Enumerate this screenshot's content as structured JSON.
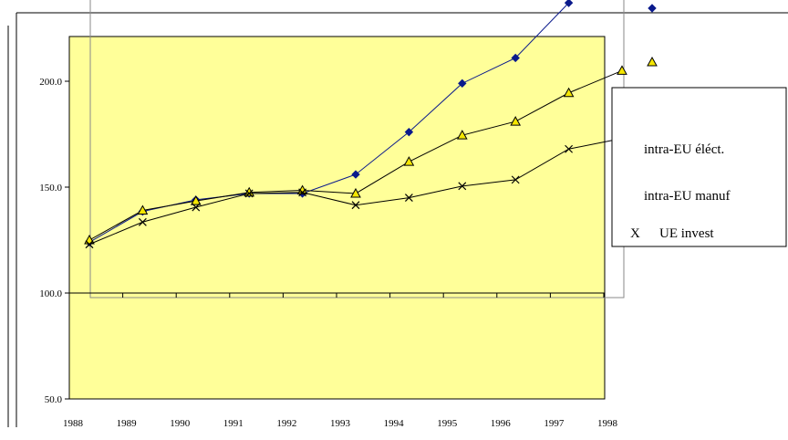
{
  "chart_data": {
    "type": "line",
    "title": "",
    "xlabel": "",
    "ylabel": "",
    "x": [
      1988,
      1989,
      1990,
      1991,
      1992,
      1993,
      1994,
      1995,
      1996,
      1997,
      1998
    ],
    "x_tick_labels": [
      "1988",
      "1989",
      "1990",
      "1991",
      "1992",
      "1993",
      "1994",
      "1995",
      "1996",
      "1997",
      "1998"
    ],
    "y_tick_labels": [
      "50.0",
      "100.0",
      "150.0",
      "200.0"
    ],
    "ylim": [
      50,
      237
    ],
    "grid": false,
    "legend_position": "right",
    "series": [
      {
        "name": "intra-EU éléct.",
        "marker": "diamond",
        "color": "#0a1a8c",
        "marker_color": "#0a1a8c",
        "values": [
          124,
          138.5,
          144,
          147,
          147,
          156,
          176,
          199,
          211,
          237,
          null
        ]
      },
      {
        "name": "intra-EU manuf",
        "marker": "triangle",
        "color": "#000000",
        "marker_color": "#f5e600",
        "values": [
          125,
          139,
          143.5,
          147.5,
          148.5,
          147,
          162,
          174.5,
          181,
          194.5,
          205
        ]
      },
      {
        "name": "UE invest",
        "marker": "cross",
        "color": "#000000",
        "marker_color": "#000000",
        "legend_symbol_text": "X",
        "values": [
          123,
          133.5,
          140.5,
          147,
          147.5,
          141.5,
          145,
          150.5,
          153.5,
          168,
          173
        ]
      }
    ]
  }
}
